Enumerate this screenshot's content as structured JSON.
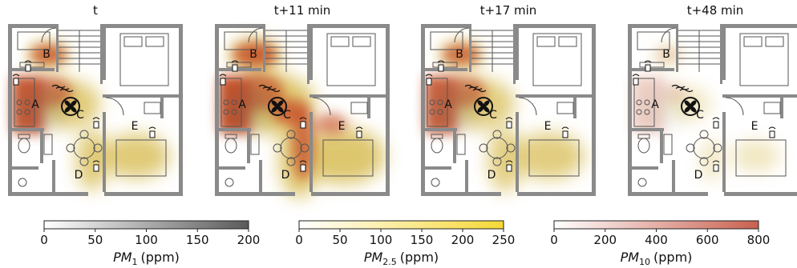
{
  "panels": [
    {
      "title": "t",
      "pm1": 0.55,
      "pm25": 0.75,
      "pm10": 0.95,
      "spread": 1.0
    },
    {
      "title": "t+11 min",
      "pm1": 0.6,
      "pm25": 0.8,
      "pm10": 1.0,
      "spread": 1.25
    },
    {
      "title": "t+17 min",
      "pm1": 0.5,
      "pm25": 0.7,
      "pm10": 0.9,
      "spread": 1.05
    },
    {
      "title": "t+48 min",
      "pm1": 0.2,
      "pm25": 0.35,
      "pm10": 0.25,
      "spread": 0.7
    }
  ],
  "rooms": [
    "A",
    "B",
    "C",
    "D",
    "E"
  ],
  "colorbars": [
    {
      "var": "PM",
      "sub": "1",
      "unit": "(ppm)",
      "ticks": [
        "0",
        "50",
        "100",
        "150",
        "200"
      ],
      "colors": [
        "#ffffff",
        "#5a5a5a"
      ]
    },
    {
      "var": "PM",
      "sub": "2.5",
      "unit": "(ppm)",
      "ticks": [
        "0",
        "50",
        "100",
        "150",
        "200",
        "250"
      ],
      "colors": [
        "#ffffff",
        "#f6d835"
      ]
    },
    {
      "var": "PM",
      "sub": "10",
      "unit": "(ppm)",
      "ticks": [
        "0",
        "200",
        "400",
        "600",
        "800"
      ],
      "colors": [
        "#ffffff",
        "#c9604f"
      ]
    }
  ],
  "colors": {
    "wall": "#8a8a8a",
    "line": "#555555",
    "pm10": "#c8522b",
    "pm25": "#d6b94c"
  }
}
